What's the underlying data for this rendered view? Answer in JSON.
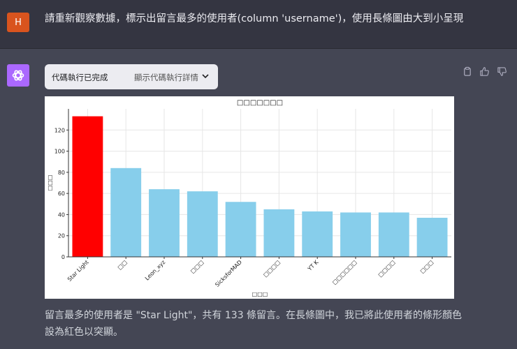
{
  "user": {
    "avatar_letter": "H",
    "message": "請重新觀察數據，標示出留言最多的使用者(column 'username')，使用長條圖由大到小呈現"
  },
  "assistant": {
    "code_status": "代碼執行已完成",
    "code_details_label": "顯示代碼執行詳情",
    "answer": "留言最多的使用者是 \"Star Light\"，共有 133 條留言。在長條圖中，我已將此使用者的條形顏色設為紅色以突顯。"
  },
  "icons": [
    "user-avatar",
    "openai-logo-icon",
    "chevron-down-icon",
    "copy-icon",
    "thumbs-up-icon",
    "thumbs-down-icon"
  ],
  "chart_data": {
    "type": "bar",
    "title": "□□□□□□□",
    "xlabel": "□□□",
    "ylabel": "□□□",
    "categories": [
      "Star Light",
      "□□",
      "Leon_xyz",
      "□□□",
      "SicksforMAD",
      "□□□□",
      "YT K",
      "□□□□□□",
      "□□□□",
      "□□□"
    ],
    "values": [
      133,
      84,
      64,
      62,
      52,
      45,
      43,
      42,
      42,
      37
    ],
    "highlight_index": 0,
    "colors": {
      "highlight": "#ff0000",
      "bar": "#87ceeb"
    },
    "ylim": [
      0,
      140
    ],
    "yticks": [
      0,
      20,
      40,
      60,
      80,
      100,
      120
    ],
    "grid": true
  }
}
